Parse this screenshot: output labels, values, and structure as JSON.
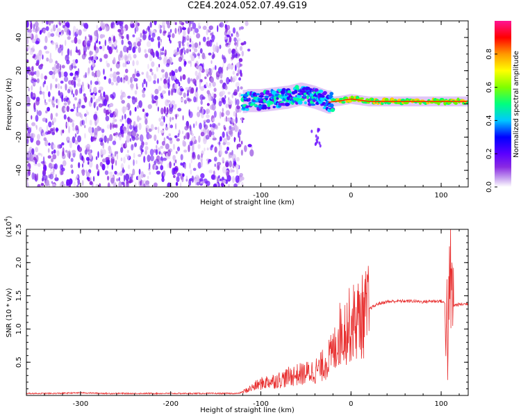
{
  "title": "C2E4.2024.052.07.49.G19",
  "chart_data": [
    {
      "type": "heatmap",
      "xlabel": "Height of straight line (km)",
      "ylabel": "Frequency (Hz)",
      "xlim": [
        -360,
        130
      ],
      "ylim": [
        -50,
        50
      ],
      "xticks": [
        -300,
        -200,
        -100,
        0,
        100
      ],
      "yticks": [
        -40,
        -20,
        0,
        20,
        40
      ],
      "colorbar": {
        "label": "Normalized spectral amplitude",
        "range": [
          0,
          1
        ],
        "ticks": [
          0.0,
          0.2,
          0.4,
          0.6,
          0.8
        ],
        "tick_labels": [
          "0.0",
          "0.2",
          "0.4",
          "0.6",
          "0.8"
        ],
        "colormap": [
          "#ffffff",
          "#c9a6f0",
          "#8a2be2",
          "#5b00ff",
          "#0000ff",
          "#00c8ff",
          "#00ff7f",
          "#7fff00",
          "#ffff00",
          "#ff9900",
          "#ff0000",
          "#ff1493"
        ]
      },
      "regions": {
        "noise_band": {
          "x": [
            -360,
            -120
          ],
          "y": [
            -50,
            50
          ],
          "description_level": 0.3
        },
        "signal_track": [
          {
            "x": -115,
            "f": 2
          },
          {
            "x": -100,
            "f": 2
          },
          {
            "x": -85,
            "f": 3
          },
          {
            "x": -70,
            "f": 4
          },
          {
            "x": -55,
            "f": 6
          },
          {
            "x": -40,
            "f": 4
          },
          {
            "x": -25,
            "f": 1
          },
          {
            "x": -10,
            "f": 2
          },
          {
            "x": 0,
            "f": 3
          },
          {
            "x": 20,
            "f": 1.5
          },
          {
            "x": 60,
            "f": 1.5
          },
          {
            "x": 100,
            "f": 1.5
          },
          {
            "x": 130,
            "f": 1.5
          }
        ]
      }
    },
    {
      "type": "line",
      "xlabel": "Height of straight line (km)",
      "ylabel": "SNR (10 * v/v)",
      "y_multiplier_label": "(x10",
      "y_multiplier_exp": "4",
      "y_multiplier_close": ")",
      "xlim": [
        -360,
        130
      ],
      "ylim": [
        0,
        2.5
      ],
      "xticks": [
        -300,
        -200,
        -100,
        0,
        100
      ],
      "yticks": [
        0.5,
        1.0,
        1.5,
        2.0,
        2.5
      ],
      "ytick_labels": [
        "0.5",
        "1.0",
        "1.5",
        "2.0",
        "2.5"
      ],
      "series": [
        {
          "color": "#e83030",
          "x": [
            -360,
            -330,
            -300,
            -270,
            -240,
            -210,
            -180,
            -150,
            -125,
            -115,
            -105,
            -95,
            -85,
            -75,
            -65,
            -55,
            -45,
            -35,
            -28,
            -22,
            -18,
            -14,
            -10,
            -6,
            -2,
            2,
            8,
            14,
            20,
            30,
            40,
            50,
            60,
            70,
            80,
            90,
            100,
            105,
            108,
            110,
            112,
            115,
            120,
            130
          ],
          "y": [
            0.03,
            0.03,
            0.04,
            0.03,
            0.03,
            0.03,
            0.03,
            0.03,
            0.03,
            0.08,
            0.15,
            0.2,
            0.22,
            0.25,
            0.3,
            0.32,
            0.35,
            0.4,
            0.5,
            0.6,
            0.7,
            0.9,
            0.95,
            1.0,
            1.05,
            1.1,
            1.15,
            1.2,
            1.3,
            1.38,
            1.41,
            1.42,
            1.42,
            1.42,
            1.41,
            1.42,
            1.42,
            1.38,
            0.8,
            1.9,
            1.4,
            1.36,
            1.37,
            1.38
          ]
        }
      ]
    }
  ]
}
